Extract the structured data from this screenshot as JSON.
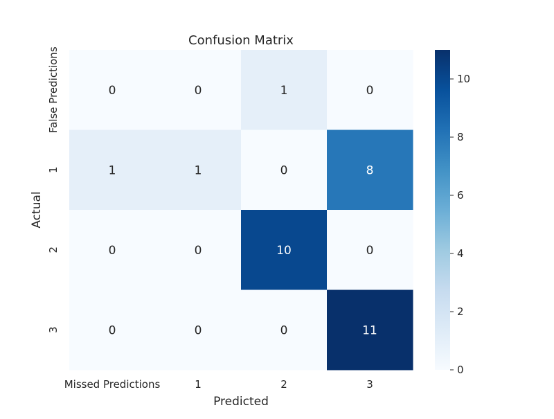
{
  "chart_data": {
    "type": "heatmap",
    "title": "Confusion Matrix",
    "xlabel": "Predicted",
    "ylabel": "Actual",
    "x_categories": [
      "Missed Predictions",
      "1",
      "2",
      "3"
    ],
    "y_categories": [
      "False Predictions",
      "1",
      "2",
      "3"
    ],
    "values": [
      [
        0,
        0,
        1,
        0
      ],
      [
        1,
        1,
        0,
        8
      ],
      [
        0,
        0,
        10,
        0
      ],
      [
        0,
        0,
        0,
        11
      ]
    ],
    "colorbar": {
      "min": 0,
      "max": 11,
      "ticks": [
        0,
        2,
        4,
        6,
        8,
        10
      ]
    },
    "colormap": "Blues",
    "colors": {
      "low": "#f7fbff",
      "high": "#08306b"
    },
    "grid": false
  }
}
